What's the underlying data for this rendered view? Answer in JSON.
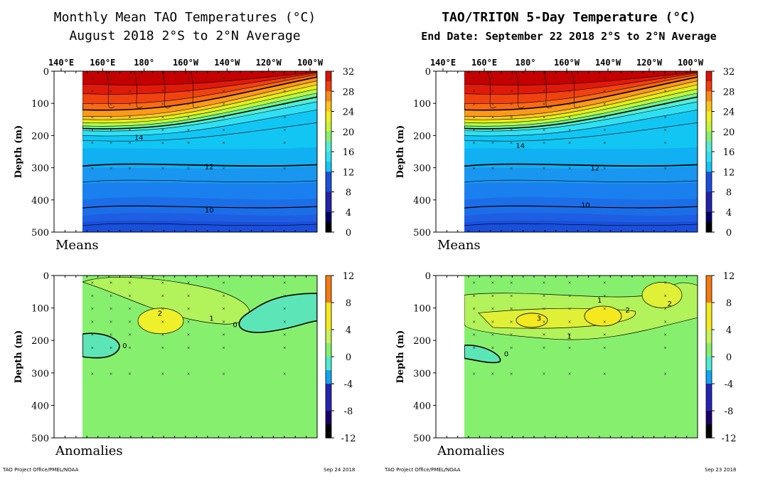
{
  "left": {
    "title1": "Monthly Mean TAO Temperatures (°C)",
    "title2": "August 2018    2°S to 2°N Average",
    "footer_left": "TAO Project Office/PMEL/NOAA",
    "footer_right": "Sep 24 2018"
  },
  "right": {
    "title1": "TAO/TRITON 5-Day Temperature (°C)",
    "title2": "End Date: September 22 2018   2°S to 2°N Average",
    "footer_left": "TAO Project Office/PMEL/NOAA",
    "footer_right": "Sep 23 2018"
  },
  "chart_data": [
    {
      "id": "left-means",
      "type": "heatmap",
      "corner_label": "Means",
      "ylabel": "Depth (m)",
      "ylim": [
        0,
        500
      ],
      "yticks": [
        0,
        100,
        200,
        300,
        400,
        500
      ],
      "xticks": [
        "140°E",
        "160°E",
        "180°",
        "160°W",
        "140°W",
        "120°W",
        "100°W"
      ],
      "colorbar": {
        "ticks": [
          32,
          28,
          24,
          20,
          16,
          12,
          8,
          4,
          0
        ],
        "min": 0,
        "max": 32
      },
      "contour_labels": [
        {
          "text": "14",
          "x": 0.24,
          "depth": 205
        },
        {
          "text": "12",
          "x": 0.54,
          "depth": 295
        },
        {
          "text": "10",
          "x": 0.54,
          "depth": 430
        }
      ]
    },
    {
      "id": "right-means",
      "type": "heatmap",
      "corner_label": "Means",
      "ylabel": "Depth (m)",
      "ylim": [
        0,
        500
      ],
      "yticks": [
        0,
        100,
        200,
        300,
        400,
        500
      ],
      "xticks": [
        "140°E",
        "160°E",
        "180°",
        "160°W",
        "140°W",
        "120°W",
        "100°W"
      ],
      "colorbar": {
        "ticks": [
          32,
          28,
          24,
          20,
          16,
          12,
          8,
          4,
          0
        ],
        "min": 0,
        "max": 32
      },
      "contour_labels": [
        {
          "text": "14",
          "x": 0.24,
          "depth": 230
        },
        {
          "text": "12",
          "x": 0.56,
          "depth": 300
        },
        {
          "text": "10",
          "x": 0.52,
          "depth": 415
        }
      ]
    },
    {
      "id": "left-anom",
      "type": "heatmap",
      "corner_label": "Anomalies",
      "ylabel": "Depth (m)",
      "ylim": [
        0,
        500
      ],
      "yticks": [
        0,
        100,
        200,
        300,
        400,
        500
      ],
      "colorbar": {
        "ticks": [
          12,
          8,
          4,
          0,
          -4,
          -8,
          -12
        ],
        "min": -12,
        "max": 12
      },
      "contour_labels": [
        {
          "text": "2",
          "x": 0.33,
          "depth": 115
        },
        {
          "text": "1",
          "x": 0.55,
          "depth": 130
        },
        {
          "text": "0",
          "x": 0.65,
          "depth": 150
        },
        {
          "text": "0",
          "x": 0.18,
          "depth": 215
        }
      ]
    },
    {
      "id": "right-anom",
      "type": "heatmap",
      "corner_label": "Anomalies",
      "ylabel": "Depth (m)",
      "ylim": [
        0,
        500
      ],
      "yticks": [
        0,
        100,
        200,
        300,
        400,
        500
      ],
      "colorbar": {
        "ticks": [
          12,
          8,
          4,
          0,
          -4,
          -8,
          -12
        ],
        "min": -12,
        "max": 12
      },
      "contour_labels": [
        {
          "text": "1",
          "x": 0.58,
          "depth": 75
        },
        {
          "text": "3",
          "x": 0.32,
          "depth": 130
        },
        {
          "text": "2",
          "x": 0.7,
          "depth": 105
        },
        {
          "text": "2",
          "x": 0.88,
          "depth": 85
        },
        {
          "text": "1",
          "x": 0.45,
          "depth": 185
        },
        {
          "text": "0",
          "x": 0.18,
          "depth": 240
        }
      ]
    }
  ]
}
